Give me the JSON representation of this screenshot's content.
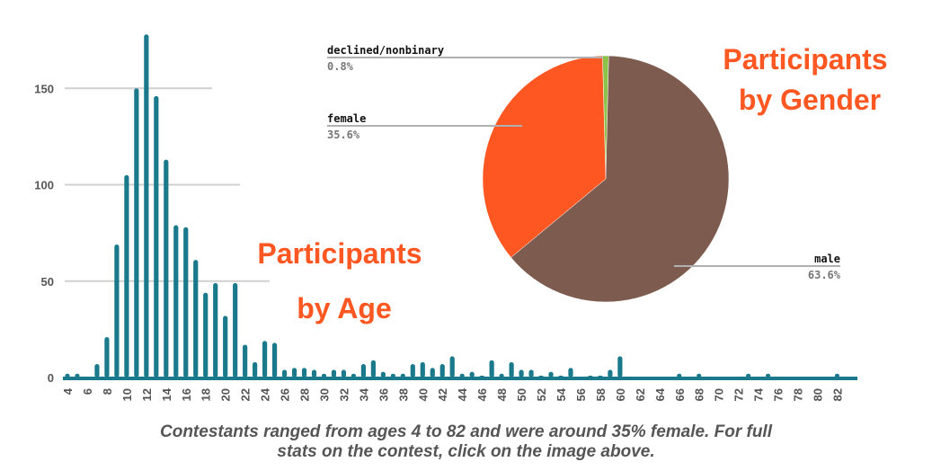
{
  "chart_data": [
    {
      "type": "bar",
      "title": "Participants by Age",
      "title_lines": [
        "Participants",
        "by Age"
      ],
      "xlabel": "",
      "ylabel": "",
      "ylim": [
        0,
        180
      ],
      "y_ticks": [
        0,
        50,
        100,
        150
      ],
      "x_tick_labels": [
        4,
        6,
        8,
        10,
        12,
        14,
        16,
        18,
        20,
        22,
        24,
        26,
        28,
        30,
        32,
        34,
        36,
        38,
        40,
        42,
        44,
        46,
        48,
        50,
        52,
        54,
        56,
        58,
        60,
        62,
        64,
        66,
        68,
        70,
        72,
        74,
        76,
        78,
        80,
        82
      ],
      "grid": true,
      "bar_color": "#1a7a8c",
      "x": [
        4,
        5,
        7,
        8,
        9,
        10,
        11,
        12,
        13,
        14,
        15,
        16,
        17,
        18,
        19,
        20,
        21,
        22,
        23,
        24,
        25,
        26,
        27,
        28,
        29,
        30,
        31,
        32,
        33,
        34,
        35,
        36,
        37,
        38,
        39,
        40,
        41,
        42,
        43,
        44,
        45,
        46,
        47,
        48,
        49,
        50,
        51,
        52,
        53,
        54,
        55,
        57,
        58,
        59,
        60,
        66,
        68,
        73,
        75,
        82
      ],
      "values": [
        2,
        2,
        7,
        21,
        69,
        105,
        150,
        178,
        146,
        113,
        79,
        78,
        61,
        44,
        49,
        32,
        49,
        17,
        8,
        19,
        18,
        4,
        5,
        5,
        4,
        2,
        4,
        4,
        2,
        7,
        9,
        3,
        2,
        2,
        7,
        8,
        5,
        7,
        11,
        2,
        3,
        1,
        9,
        2,
        8,
        4,
        4,
        1,
        3,
        1,
        5,
        1,
        1,
        4,
        11,
        2,
        2,
        2,
        2,
        2
      ]
    },
    {
      "type": "pie",
      "title": "Participants by Gender",
      "title_lines": [
        "Participants",
        "by Gender"
      ],
      "slices": [
        {
          "label": "declined/nonbinary",
          "value": 0.8,
          "value_label": "0.8%",
          "color": "#8bc34a"
        },
        {
          "label": "female",
          "value": 35.6,
          "value_label": "35.6%",
          "color": "#ff5722"
        },
        {
          "label": "male",
          "value": 63.6,
          "value_label": "63.6%",
          "color": "#7d5b4f"
        }
      ],
      "title_color": "#ff5722"
    }
  ],
  "caption": {
    "line1": "Contestants ranged from ages 4 to 82 and were around 35% female. For full",
    "line2": "stats on the contest, click on the image above."
  }
}
